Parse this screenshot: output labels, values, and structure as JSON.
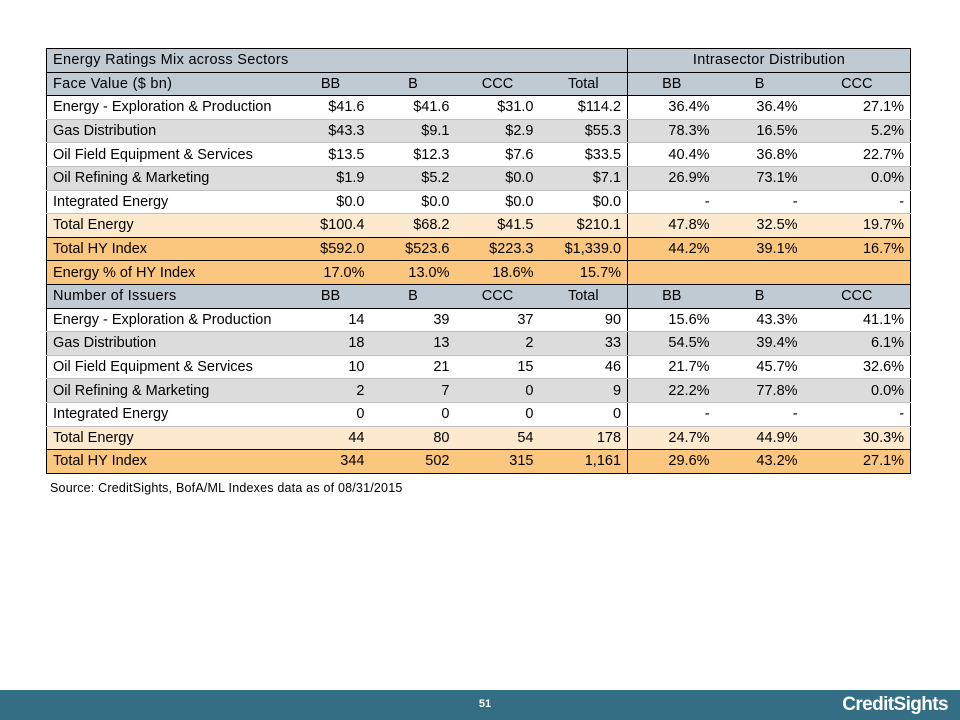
{
  "table": {
    "title_left": "Energy Ratings Mix across Sectors",
    "title_right": "Intrasector Distribution",
    "sections": [
      {
        "header": [
          "Face Value ($ bn)",
          "BB",
          "B",
          "CCC",
          "Total",
          "BB",
          "B",
          "CCC"
        ],
        "rows": [
          {
            "style": "plain",
            "cells": [
              "Energy - Exploration & Production",
              "$41.6",
              "$41.6",
              "$31.0",
              "$114.2",
              "36.4%",
              "36.4%",
              "27.1%"
            ]
          },
          {
            "style": "alt",
            "cells": [
              "Gas Distribution",
              "$43.3",
              "$9.1",
              "$2.9",
              "$55.3",
              "78.3%",
              "16.5%",
              "5.2%"
            ]
          },
          {
            "style": "plain",
            "cells": [
              "Oil Field Equipment & Services",
              "$13.5",
              "$12.3",
              "$7.6",
              "$33.5",
              "40.4%",
              "36.8%",
              "22.7%"
            ]
          },
          {
            "style": "alt",
            "cells": [
              "Oil Refining & Marketing",
              "$1.9",
              "$5.2",
              "$0.0",
              "$7.1",
              "26.9%",
              "73.1%",
              "0.0%"
            ]
          },
          {
            "style": "plain",
            "cells": [
              "Integrated Energy",
              "$0.0",
              "$0.0",
              "$0.0",
              "$0.0",
              "-",
              "-",
              "-"
            ]
          },
          {
            "style": "ltan",
            "cells": [
              "Total Energy",
              "$100.4",
              "$68.2",
              "$41.5",
              "$210.1",
              "47.8%",
              "32.5%",
              "19.7%"
            ]
          },
          {
            "style": "dtan",
            "cells": [
              "Total HY Index",
              "$592.0",
              "$523.6",
              "$223.3",
              "$1,339.0",
              "44.2%",
              "39.1%",
              "16.7%"
            ]
          },
          {
            "style": "dtan",
            "cells": [
              "Energy % of HY Index",
              "17.0%",
              "13.0%",
              "18.6%",
              "15.7%",
              "",
              "",
              ""
            ]
          }
        ]
      },
      {
        "header": [
          "Number of Issuers",
          "BB",
          "B",
          "CCC",
          "Total",
          "BB",
          "B",
          "CCC"
        ],
        "rows": [
          {
            "style": "plain",
            "cells": [
              "Energy - Exploration & Production",
              "14",
              "39",
              "37",
              "90",
              "15.6%",
              "43.3%",
              "41.1%"
            ]
          },
          {
            "style": "alt",
            "cells": [
              "Gas Distribution",
              "18",
              "13",
              "2",
              "33",
              "54.5%",
              "39.4%",
              "6.1%"
            ]
          },
          {
            "style": "plain",
            "cells": [
              "Oil Field Equipment & Services",
              "10",
              "21",
              "15",
              "46",
              "21.7%",
              "45.7%",
              "32.6%"
            ]
          },
          {
            "style": "alt",
            "cells": [
              "Oil Refining & Marketing",
              "2",
              "7",
              "0",
              "9",
              "22.2%",
              "77.8%",
              "0.0%"
            ]
          },
          {
            "style": "plain",
            "cells": [
              "Integrated Energy",
              "0",
              "0",
              "0",
              "0",
              "-",
              "-",
              "-"
            ]
          },
          {
            "style": "ltan",
            "cells": [
              "Total Energy",
              "44",
              "80",
              "54",
              "178",
              "24.7%",
              "44.9%",
              "30.3%"
            ]
          },
          {
            "style": "dtan",
            "cells": [
              "Total HY Index",
              "344",
              "502",
              "315",
              "1,161",
              "29.6%",
              "43.2%",
              "27.1%"
            ]
          }
        ]
      }
    ]
  },
  "source": "Source: CreditSights, BofA/ML Indexes   data as of 08/31/2015",
  "footer": {
    "page_number": "51",
    "logo": "CreditSights"
  },
  "colors": {
    "header_bg": "#bfcad3",
    "alt_row_bg": "#dcdcdc",
    "total_energy_bg": "#fde9cd",
    "hy_index_bg": "#fbc77e",
    "footer_bg": "#336e85"
  }
}
